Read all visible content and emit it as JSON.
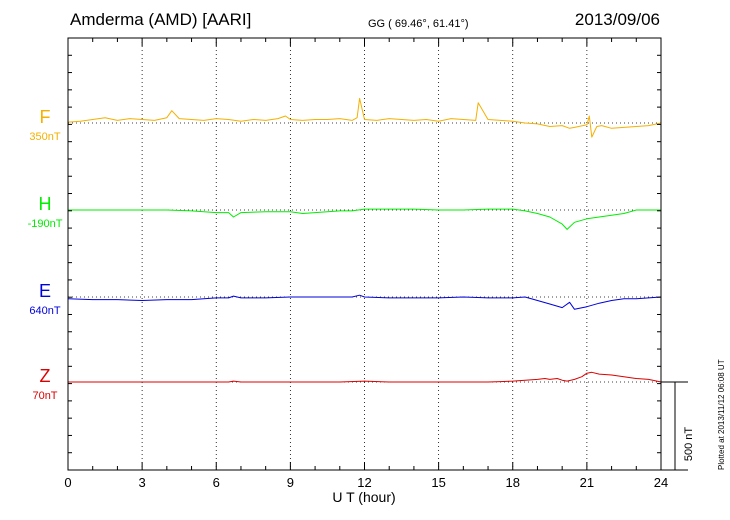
{
  "chart_data": {
    "type": "line",
    "title": "Amderma (AMD)  [AARI]",
    "coords": "GG ( 69.46°,  61.41°)",
    "date": "2013/09/06",
    "xlabel": "U T (hour)",
    "xlim": [
      0,
      24
    ],
    "x_ticks": [
      "0",
      "3",
      "6",
      "9",
      "12",
      "15",
      "18",
      "21",
      "24"
    ],
    "scale_label": "500 nT",
    "footer": "Plotted at 2013/11/12 06:08 UT",
    "series": [
      {
        "name": "F",
        "baseline": "350nT",
        "color": "#f5b000",
        "x": [
          0,
          0.5,
          1,
          1.5,
          2,
          2.5,
          3,
          3.5,
          4,
          4.2,
          4.5,
          5,
          5.5,
          6,
          6.5,
          7,
          7.5,
          8,
          8.5,
          8.8,
          9,
          9.5,
          10,
          10.5,
          11,
          11.5,
          11.7,
          11.8,
          12,
          12.5,
          13,
          13.5,
          14,
          14.5,
          15,
          15.5,
          16,
          16.5,
          16.6,
          17,
          17.5,
          18,
          18.5,
          19,
          19.5,
          20,
          20.3,
          20.5,
          21,
          21.1,
          21.2,
          21.4,
          21.6,
          22,
          22.5,
          23,
          23.5,
          24
        ],
        "values": [
          -5,
          -10,
          -20,
          -30,
          -15,
          -25,
          -20,
          -15,
          -30,
          -70,
          -25,
          -20,
          -15,
          -25,
          -20,
          -10,
          -20,
          -15,
          -25,
          -40,
          -20,
          -15,
          -20,
          -20,
          -25,
          -15,
          -30,
          -140,
          -20,
          -15,
          -25,
          -20,
          -15,
          -20,
          -10,
          -25,
          -20,
          -15,
          -115,
          -20,
          -15,
          -10,
          0,
          5,
          20,
          15,
          30,
          25,
          10,
          -40,
          80,
          20,
          15,
          30,
          25,
          20,
          15,
          0
        ]
      },
      {
        "name": "H",
        "baseline": "-190nT",
        "color": "#00ee00",
        "x": [
          0,
          1,
          2,
          3,
          4,
          5,
          5.5,
          6,
          6.5,
          6.7,
          7,
          8,
          9,
          9.5,
          10,
          10.5,
          11,
          11.5,
          12,
          13,
          14,
          15,
          16,
          17,
          18,
          18.5,
          19,
          19.5,
          20,
          20.2,
          20.5,
          21,
          21.5,
          22,
          22.5,
          23,
          23.5,
          24
        ],
        "values": [
          0,
          0,
          0,
          0,
          0,
          5,
          10,
          15,
          15,
          40,
          15,
          10,
          10,
          20,
          15,
          10,
          5,
          5,
          -5,
          -5,
          -5,
          0,
          0,
          -5,
          -5,
          5,
          20,
          40,
          80,
          110,
          70,
          50,
          40,
          30,
          20,
          0,
          0,
          0
        ]
      },
      {
        "name": "E",
        "baseline": "640nT",
        "color": "#0000dd",
        "x": [
          0,
          1,
          2,
          3,
          4,
          5,
          5.5,
          6,
          6.5,
          6.7,
          7,
          8,
          9,
          10,
          11,
          11.5,
          11.8,
          12,
          13,
          14,
          15,
          16,
          17,
          18,
          18.5,
          19,
          19.5,
          20,
          20.3,
          20.5,
          21,
          21.5,
          22,
          22.5,
          23,
          23.5,
          24
        ],
        "values": [
          10,
          15,
          15,
          20,
          15,
          15,
          10,
          5,
          5,
          -5,
          5,
          5,
          0,
          0,
          0,
          0,
          -10,
          0,
          5,
          5,
          5,
          0,
          5,
          5,
          0,
          20,
          40,
          60,
          30,
          70,
          55,
          35,
          20,
          10,
          10,
          5,
          0
        ]
      },
      {
        "name": "Z",
        "baseline": "70nT",
        "color": "#dd0000",
        "x": [
          0,
          1,
          2,
          3,
          4,
          5,
          6,
          6.5,
          6.7,
          7,
          8,
          9,
          10,
          11,
          12,
          13,
          14,
          15,
          16,
          17,
          17.5,
          18,
          18.5,
          19,
          19.3,
          19.5,
          19.8,
          20,
          20.2,
          20.5,
          20.8,
          21,
          21.2,
          21.5,
          22,
          22.5,
          23,
          23.5,
          24
        ],
        "values": [
          0,
          0,
          0,
          0,
          0,
          0,
          0,
          0,
          -5,
          0,
          0,
          0,
          0,
          0,
          -5,
          0,
          0,
          0,
          0,
          0,
          -2,
          -5,
          -10,
          -15,
          -20,
          -15,
          -20,
          -10,
          -5,
          -15,
          -30,
          -50,
          -55,
          -45,
          -40,
          -30,
          -20,
          -15,
          0
        ]
      }
    ]
  }
}
